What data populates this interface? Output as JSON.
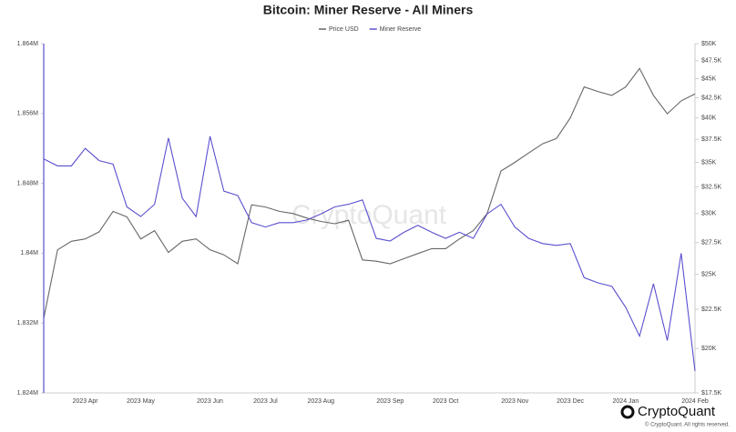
{
  "chart_data": {
    "type": "line",
    "title": "Bitcoin: Miner Reserve - All Miners",
    "watermark": "CryptoQuant",
    "logo_text": "CryptoQuant",
    "copyright": "© CryptoQuant. All rights reserved.",
    "legend": "top",
    "categories": [
      null,
      null,
      null,
      "2023 Apr",
      null,
      null,
      null,
      "2023 May",
      null,
      null,
      null,
      null,
      "2023 Jun",
      null,
      null,
      null,
      "2023 Jul",
      null,
      null,
      null,
      "2023 Aug",
      null,
      null,
      null,
      null,
      "2023 Sep",
      null,
      null,
      null,
      "2023 Oct",
      null,
      null,
      null,
      null,
      "2023 Nov",
      null,
      null,
      null,
      "2023 Dec",
      null,
      null,
      null,
      "2024 Jan",
      null,
      null,
      null,
      null,
      "2024 Feb"
    ],
    "series": [
      {
        "name": "Price USD",
        "color": "#666666",
        "axis": "y2",
        "values": [
          21900,
          26900,
          27600,
          27800,
          28400,
          30200,
          29700,
          27800,
          28500,
          26700,
          27600,
          27800,
          26900,
          26500,
          25800,
          30800,
          30600,
          30200,
          30000,
          29600,
          29300,
          29100,
          29400,
          26100,
          26000,
          25800,
          26200,
          26600,
          27000,
          27000,
          27800,
          28500,
          30000,
          34100,
          35000,
          36000,
          37000,
          37600,
          40000,
          43900,
          43300,
          42800,
          43900,
          46400,
          42800,
          40500,
          42100,
          43000
        ]
      },
      {
        "name": "Miner Reserve",
        "color": "#5a4fcf",
        "axis": "y",
        "values": [
          1850800,
          1850000,
          1850000,
          1852000,
          1850600,
          1850200,
          1845300,
          1844200,
          1845600,
          1853200,
          1846300,
          1844200,
          1853400,
          1847100,
          1846600,
          1843500,
          1843000,
          1843500,
          1843500,
          1843800,
          1844500,
          1845300,
          1845600,
          1846100,
          1841700,
          1841400,
          1842400,
          1843200,
          1842400,
          1841700,
          1842400,
          1841700,
          1844500,
          1845600,
          1843000,
          1841700,
          1841100,
          1840900,
          1841100,
          1837200,
          1836600,
          1836200,
          1833800,
          1830500,
          1836500,
          1830000,
          1840000,
          1826500
        ]
      }
    ],
    "ylim": [
      1824000,
      1864000
    ],
    "yticks": [
      {
        "value": 1824000,
        "label": "1.824M"
      },
      {
        "value": 1832000,
        "label": "1.832M"
      },
      {
        "value": 1840000,
        "label": "1.84M"
      },
      {
        "value": 1848000,
        "label": "1.848M"
      },
      {
        "value": 1856000,
        "label": "1.856M"
      },
      {
        "value": 1864000,
        "label": "1.864M"
      }
    ],
    "y2lim": [
      17500,
      50000
    ],
    "y2log": true,
    "y2ticks": [
      {
        "value": 17500,
        "label": "$17.5K"
      },
      {
        "value": 20000,
        "label": "$20K"
      },
      {
        "value": 22500,
        "label": "$22.5K"
      },
      {
        "value": 25000,
        "label": "$25K"
      },
      {
        "value": 27500,
        "label": "$27.5K"
      },
      {
        "value": 30000,
        "label": "$30K"
      },
      {
        "value": 32500,
        "label": "$32.5K"
      },
      {
        "value": 35000,
        "label": "$35K"
      },
      {
        "value": 37500,
        "label": "$37.5K"
      },
      {
        "value": 40000,
        "label": "$40K"
      },
      {
        "value": 42500,
        "label": "$42.5K"
      },
      {
        "value": 45000,
        "label": "$45K"
      },
      {
        "value": 47500,
        "label": "$47.5K"
      },
      {
        "value": 50000,
        "label": "$50K"
      }
    ]
  }
}
